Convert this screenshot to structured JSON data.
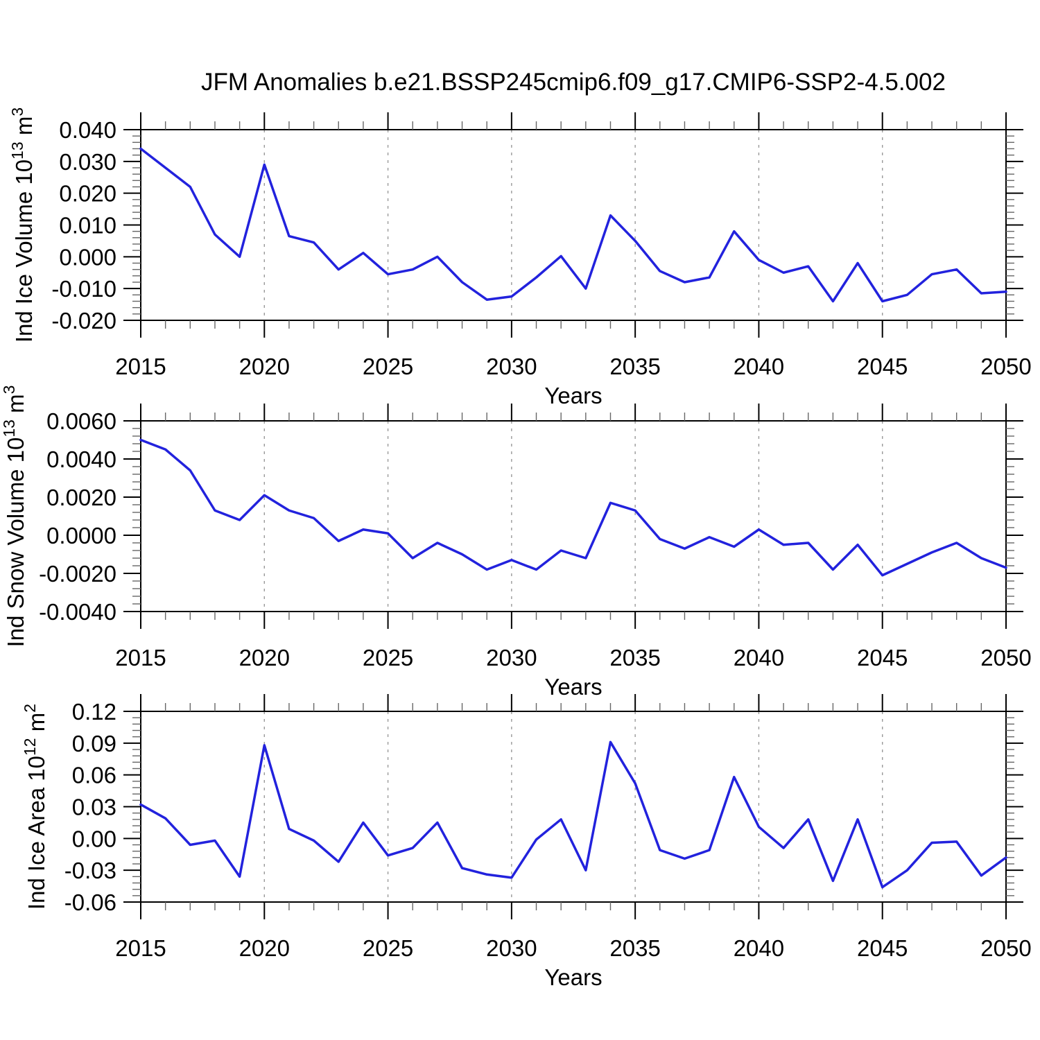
{
  "title": "JFM Anomalies b.e21.BSSP245cmip6.f09_g17.CMIP6-SSP2-4.5.002",
  "xlabel": "Years",
  "colors": {
    "line": "#2222dd",
    "grid": "#999999",
    "axis": "#000000",
    "minor_tick": "#666666",
    "background": "#ffffff"
  },
  "x_years": [
    2015,
    2016,
    2017,
    2018,
    2019,
    2020,
    2021,
    2022,
    2023,
    2024,
    2025,
    2026,
    2027,
    2028,
    2029,
    2030,
    2031,
    2032,
    2033,
    2034,
    2035,
    2036,
    2037,
    2038,
    2039,
    2040,
    2041,
    2042,
    2043,
    2044,
    2045,
    2046,
    2047,
    2048,
    2049,
    2050
  ],
  "x_axis": {
    "min": 2015,
    "max": 2050,
    "major_step": 5,
    "minor_step": 1,
    "major_tick_labels": [
      "2015",
      "2020",
      "2025",
      "2030",
      "2035",
      "2040",
      "2045",
      "2050"
    ],
    "grid_years": [
      2020,
      2025,
      2030,
      2035,
      2040,
      2045
    ]
  },
  "chart_data": [
    {
      "type": "line",
      "name": "ind-ice-volume",
      "ylabel_text": "Ind Ice Volume 10^13 m^3",
      "ylabel_segments": [
        [
          "Ind Ice Volume 10",
          0
        ],
        [
          "13",
          1
        ],
        [
          " m",
          0
        ],
        [
          "3",
          1
        ]
      ],
      "xlabel": "Years",
      "ylim": [
        -0.02,
        0.04
      ],
      "ymajor": 0.01,
      "yminor": 0.002,
      "grid": "x-dashed",
      "legend": "none",
      "yticks": [
        {
          "v": 0.04,
          "label": "0.040"
        },
        {
          "v": 0.03,
          "label": "0.030"
        },
        {
          "v": 0.02,
          "label": "0.020"
        },
        {
          "v": 0.01,
          "label": "0.010"
        },
        {
          "v": 0.0,
          "label": "0.000"
        },
        {
          "v": -0.01,
          "label": "-0.010"
        },
        {
          "v": -0.02,
          "label": "-0.020"
        }
      ],
      "values": [
        0.034,
        0.028,
        0.022,
        0.007,
        0.0,
        0.029,
        0.0065,
        0.0045,
        -0.004,
        0.0012,
        -0.0055,
        -0.004,
        0.0,
        -0.008,
        -0.0135,
        -0.0125,
        -0.0065,
        0.0002,
        -0.01,
        0.013,
        0.005,
        -0.0045,
        -0.008,
        -0.0065,
        0.008,
        -0.001,
        -0.005,
        -0.003,
        -0.014,
        -0.002,
        -0.014,
        -0.012,
        -0.0055,
        -0.004,
        -0.0115,
        -0.011
      ]
    },
    {
      "type": "line",
      "name": "ind-snow-volume",
      "ylabel_text": "Ind Snow Volume 10^13 m^3",
      "ylabel_segments": [
        [
          "Ind Snow Volume 10",
          0
        ],
        [
          "13",
          1
        ],
        [
          " m",
          0
        ],
        [
          "3",
          1
        ]
      ],
      "xlabel": "Years",
      "ylim": [
        -0.004,
        0.006
      ],
      "ymajor": 0.002,
      "yminor": 0.0004,
      "grid": "x-dashed",
      "legend": "none",
      "yticks": [
        {
          "v": 0.006,
          "label": "0.0060"
        },
        {
          "v": 0.004,
          "label": "0.0040"
        },
        {
          "v": 0.002,
          "label": "0.0020"
        },
        {
          "v": 0.0,
          "label": "0.0000"
        },
        {
          "v": -0.002,
          "label": "-0.0020"
        },
        {
          "v": -0.004,
          "label": "-0.0040"
        }
      ],
      "values": [
        0.005,
        0.0045,
        0.0034,
        0.0013,
        0.0008,
        0.0021,
        0.0013,
        0.0009,
        -0.0003,
        0.0003,
        0.0001,
        -0.0012,
        -0.0004,
        -0.001,
        -0.0018,
        -0.0013,
        -0.0018,
        -0.0008,
        -0.0012,
        0.0017,
        0.0013,
        -0.0002,
        -0.0007,
        -0.0001,
        -0.0006,
        0.0003,
        -0.0005,
        -0.0004,
        -0.0018,
        -0.0005,
        -0.0021,
        -0.0015,
        -0.0009,
        -0.0004,
        -0.0012,
        -0.0017
      ]
    },
    {
      "type": "line",
      "name": "ind-ice-area",
      "ylabel_text": "Ind Ice Area 10^12 m^2",
      "ylabel_segments": [
        [
          "Ind Ice Area 10",
          0
        ],
        [
          "12",
          1
        ],
        [
          " m",
          0
        ],
        [
          "2",
          1
        ]
      ],
      "xlabel": "Years",
      "ylim": [
        -0.06,
        0.12
      ],
      "ymajor": 0.03,
      "yminor": 0.006,
      "grid": "x-dashed",
      "legend": "none",
      "yticks": [
        {
          "v": 0.12,
          "label": "0.12"
        },
        {
          "v": 0.09,
          "label": "0.09"
        },
        {
          "v": 0.06,
          "label": "0.06"
        },
        {
          "v": 0.03,
          "label": "0.03"
        },
        {
          "v": 0.0,
          "label": "0.00"
        },
        {
          "v": -0.03,
          "label": "-0.03"
        },
        {
          "v": -0.06,
          "label": "-0.06"
        }
      ],
      "values": [
        0.032,
        0.019,
        -0.006,
        -0.002,
        -0.036,
        0.088,
        0.009,
        -0.002,
        -0.022,
        0.015,
        -0.016,
        -0.009,
        0.015,
        -0.028,
        -0.034,
        -0.037,
        -0.001,
        0.018,
        -0.03,
        0.091,
        0.052,
        -0.011,
        -0.019,
        -0.011,
        0.058,
        0.011,
        -0.009,
        0.018,
        -0.04,
        0.018,
        -0.046,
        -0.03,
        -0.004,
        -0.003,
        -0.035,
        -0.018
      ]
    }
  ]
}
